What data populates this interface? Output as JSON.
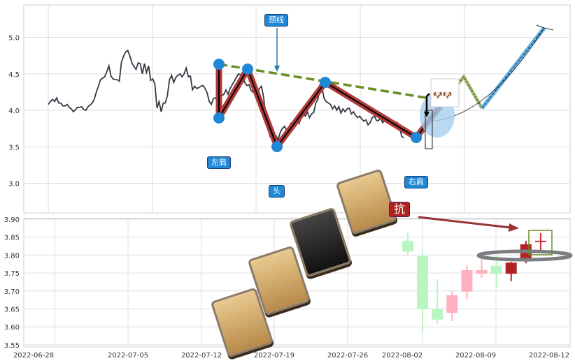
{
  "chart_data": [
    {
      "type": "line",
      "ylim": [
        2.6,
        5.45
      ],
      "yticks": [
        "5.0",
        "4.5",
        "4.0",
        "3.5",
        "3.0"
      ],
      "ytick_values": [
        5.0,
        4.5,
        4.0,
        3.5,
        3.0
      ],
      "grid": true,
      "values": [
        4.08,
        4.12,
        4.15,
        4.12,
        4.17,
        4.1,
        4.1,
        4.06,
        4.06,
        4.08,
        4.04,
        4.02,
        3.98,
        4.01,
        4.04,
        4.04,
        4.05,
        4.01,
        4.0,
        4.05,
        4.07,
        4.1,
        4.15,
        4.25,
        4.33,
        4.42,
        4.44,
        4.46,
        4.53,
        4.61,
        4.47,
        4.43,
        4.42,
        4.42,
        4.4,
        4.66,
        4.74,
        4.8,
        4.82,
        4.75,
        4.65,
        4.6,
        4.56,
        4.65,
        4.64,
        4.5,
        4.64,
        4.52,
        4.61,
        4.41,
        4.43,
        4.36,
        4.03,
        4.12,
        3.98,
        4.1,
        4.1,
        4.2,
        4.42,
        4.48,
        4.38,
        4.45,
        4.48,
        4.5,
        4.46,
        4.5,
        4.58,
        4.46,
        4.47,
        4.28,
        4.33,
        4.3,
        4.31,
        4.33,
        4.34,
        4.3,
        4.24,
        4.12,
        4.08,
        4.16,
        4.17,
        4.13,
        4.15,
        4.2,
        4.22,
        4.28,
        4.22,
        4.3,
        4.35,
        4.4,
        4.45,
        4.5,
        4.48,
        4.52,
        4.38,
        4.34,
        4.35,
        4.27,
        4.25,
        4.33,
        4.22,
        4.3,
        4.33,
        4.18,
        3.95,
        3.8,
        3.65,
        3.7,
        3.62,
        3.65,
        3.6,
        3.7,
        3.75,
        3.78,
        3.73,
        3.74,
        3.82,
        3.8,
        3.84,
        3.88,
        3.82,
        3.9,
        3.95,
        3.92,
        3.98,
        3.9,
        3.95,
        3.97,
        4.1,
        4.15,
        4.35,
        4.3,
        4.16,
        4.12,
        4.1,
        4.08,
        4.02,
        4.06,
        4.0,
        4.05,
        3.96,
        4.02,
        3.98,
        4.02,
        4.03,
        3.95,
        3.98,
        3.93,
        3.9,
        3.92,
        3.88,
        3.85,
        3.87,
        3.8,
        3.83,
        3.9,
        3.92,
        3.86,
        3.86,
        3.89,
        3.83,
        3.87,
        3.88,
        3.84,
        3.85,
        3.78,
        3.77,
        3.83,
        3.78,
        3.65,
        3.62
      ],
      "annotations": {
        "neckline": "颈线",
        "left_shoulder": "左肩",
        "head": "头",
        "right_shoulder": "右肩",
        "resistance": "抗"
      },
      "colors": {
        "line": "#333a44",
        "pattern": "#b03a3a",
        "neckline": "#6b8e23",
        "point": "#1f88d6"
      }
    },
    {
      "type": "candlestick",
      "ylim": [
        3.55,
        3.9
      ],
      "yticks": [
        "3.90",
        "3.85",
        "3.80",
        "3.75",
        "3.70",
        "3.65",
        "3.60",
        "3.55"
      ],
      "ytick_values": [
        3.9,
        3.85,
        3.8,
        3.75,
        3.7,
        3.65,
        3.6,
        3.55
      ],
      "xticks": [
        "2022-06-28",
        "2022-07-05",
        "2022-07-12",
        "2022-07-19",
        "2022-07-26",
        "2022-08-02",
        "2022-08-09",
        "2022-08-12"
      ],
      "grid": true,
      "candles": [
        {
          "o": 3.84,
          "c": 3.81,
          "h": 3.861,
          "l": 3.8,
          "color": "#b8f5c0"
        },
        {
          "o": 3.797,
          "c": 3.649,
          "h": 3.81,
          "l": 3.587,
          "color": "#b8f5c0"
        },
        {
          "o": 3.649,
          "c": 3.62,
          "h": 3.733,
          "l": 3.608,
          "color": "#b8f5c0"
        },
        {
          "o": 3.639,
          "c": 3.688,
          "h": 3.7,
          "l": 3.616,
          "color": "#ffb0c0"
        },
        {
          "o": 3.698,
          "c": 3.758,
          "h": 3.772,
          "l": 3.678,
          "color": "#ffb0c0"
        },
        {
          "o": 3.748,
          "c": 3.758,
          "h": 3.8,
          "l": 3.737,
          "color": "#ffb0c0"
        },
        {
          "o": 3.77,
          "c": 3.748,
          "h": 3.797,
          "l": 3.709,
          "color": "#b8f5c0"
        },
        {
          "o": 3.748,
          "c": 3.779,
          "h": 3.781,
          "l": 3.727,
          "color": "#b22222"
        },
        {
          "o": 3.789,
          "c": 3.83,
          "h": 3.84,
          "l": 3.777,
          "color": "#b22222"
        },
        {
          "o": 3.84,
          "c": 3.84,
          "h": 3.861,
          "l": 3.807,
          "color": "#c0303a"
        }
      ]
    }
  ]
}
